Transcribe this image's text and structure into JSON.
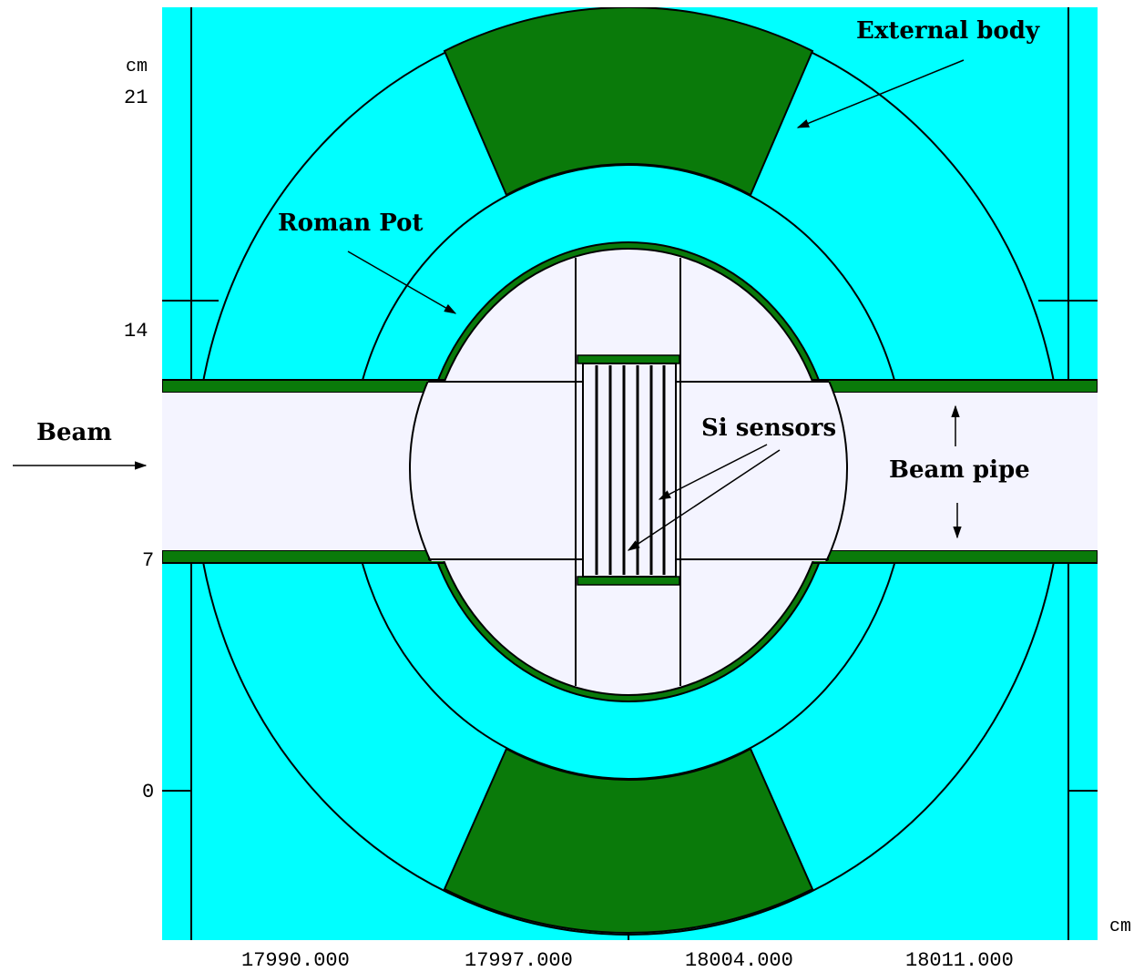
{
  "diagram": {
    "colors": {
      "background": "#00ffff",
      "body": "#0a7a0a",
      "interior": "#f4f4ff",
      "line": "#000000"
    },
    "labels": {
      "external_body": "External body",
      "roman_pot": "Roman Pot",
      "beam": "Beam",
      "si_sensors": "Si sensors",
      "beam_pipe": "Beam pipe"
    },
    "axis": {
      "y_unit": "cm",
      "x_unit": "cm",
      "y_ticks": [
        "21",
        "14",
        "7",
        "0"
      ],
      "x_ticks": [
        "17990.000",
        "17997.000",
        "18004.000",
        "18011.000"
      ]
    }
  }
}
